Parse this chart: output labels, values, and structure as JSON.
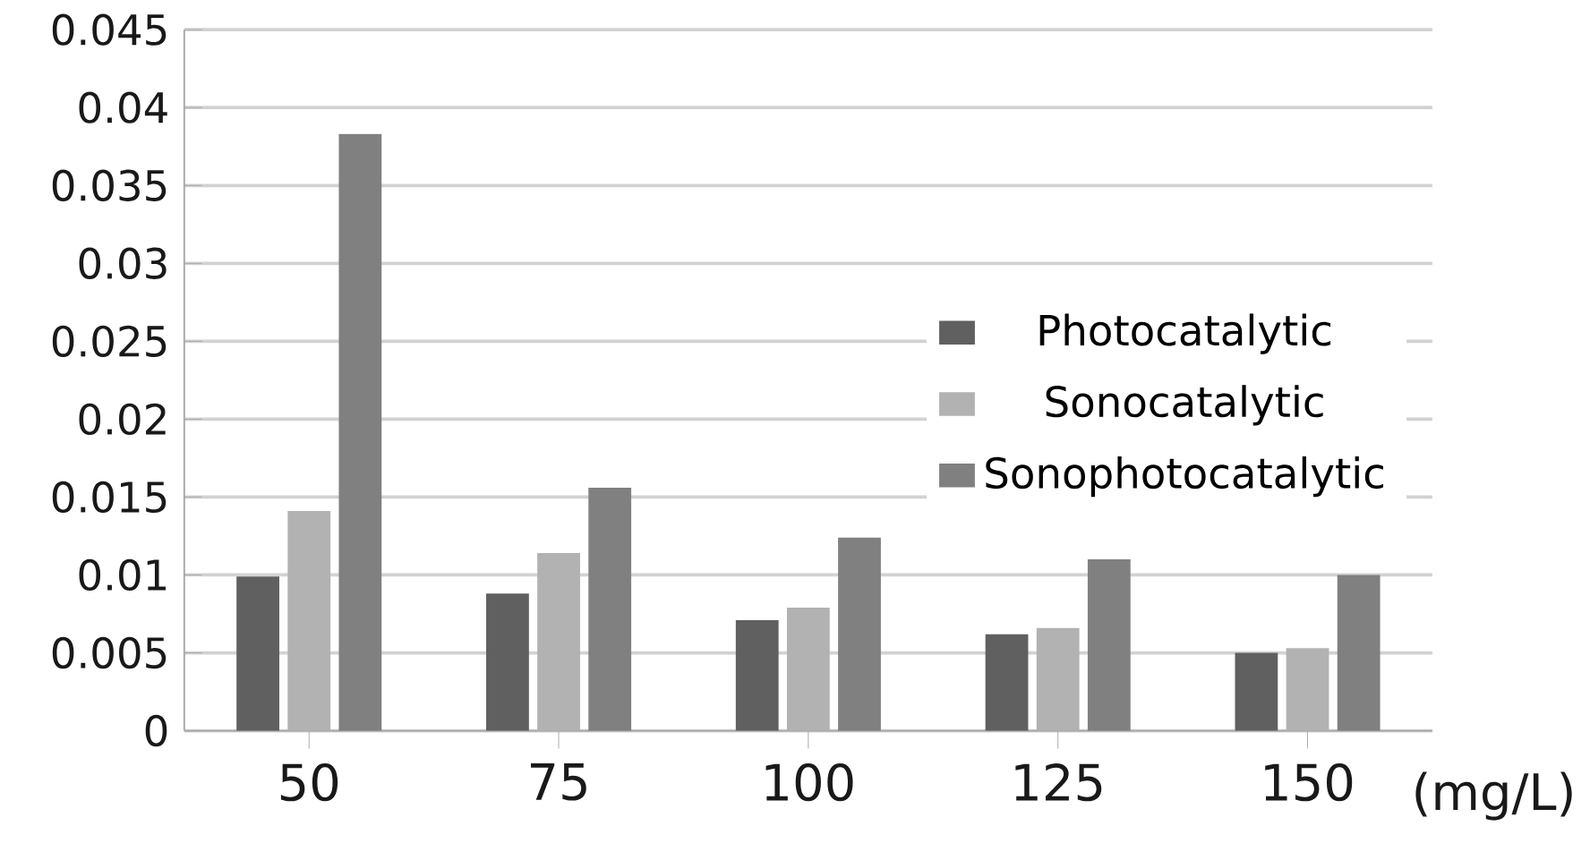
{
  "chart_data": {
    "type": "bar",
    "categories": [
      "50",
      "75",
      "100",
      "125",
      "150"
    ],
    "xlabel": "(mg/L)",
    "series": [
      {
        "name": "Photocatalytic",
        "color": "#606060",
        "values": [
          0.0099,
          0.0088,
          0.0071,
          0.0062,
          0.005
        ]
      },
      {
        "name": "Sonocatalytic",
        "color": "#b2b2b2",
        "values": [
          0.0141,
          0.0114,
          0.0079,
          0.0066,
          0.0053
        ]
      },
      {
        "name": "Sonophotocatalytic",
        "color": "#808080",
        "values": [
          0.0383,
          0.0156,
          0.0124,
          0.011,
          0.01
        ]
      }
    ],
    "ylim": [
      0,
      0.045
    ],
    "yticks": [
      0,
      0.005,
      0.01,
      0.015,
      0.02,
      0.025,
      0.03,
      0.035,
      0.04,
      0.045
    ],
    "grid": "y",
    "legend": "right"
  }
}
